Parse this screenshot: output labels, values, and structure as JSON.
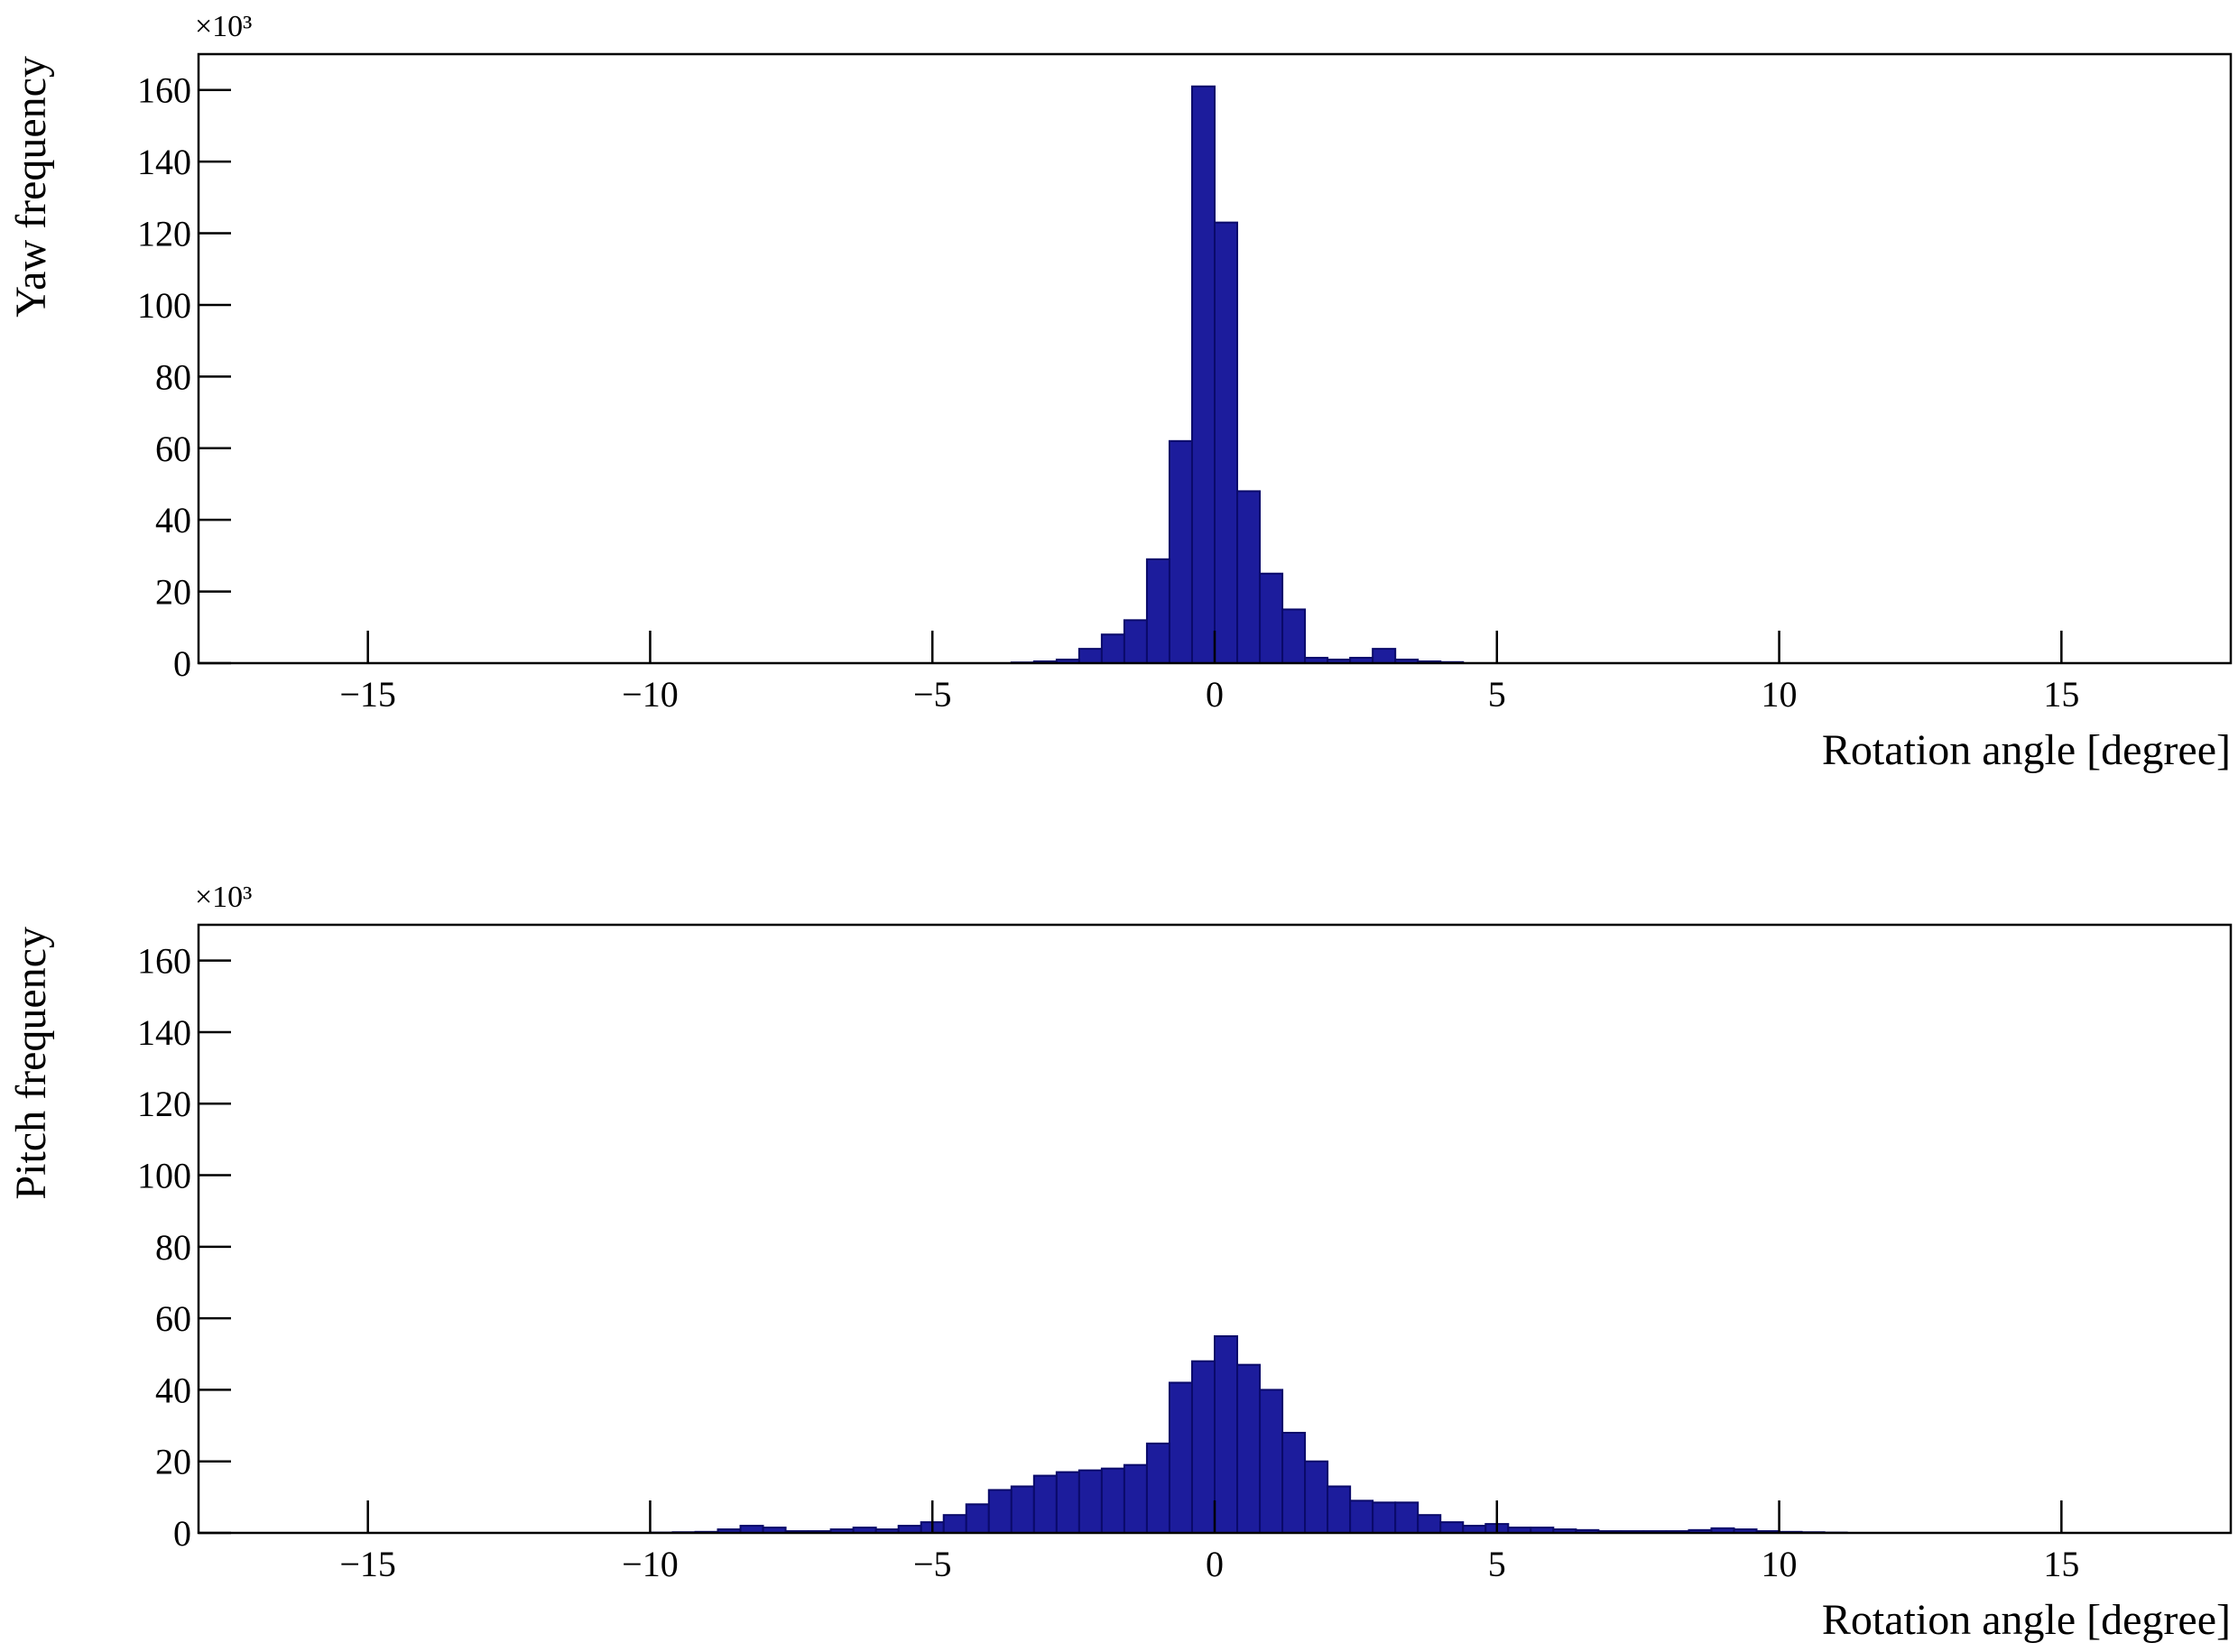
{
  "chart_data": [
    {
      "type": "histogram",
      "ylabel": "Yaw frequency",
      "xlabel": "Rotation angle [degree]",
      "y_multiplier": "×10³",
      "color": "#1c1c9c",
      "bins": [
        -18,
        -17.6,
        -17.2,
        -16.8,
        -16.4,
        -16,
        -15.6,
        -15.2,
        -14.8,
        -14.4,
        -14,
        -13.6,
        -13.2,
        -12.8,
        -12.4,
        -12,
        -11.6,
        -11.2,
        -10.8,
        -10.4,
        -10,
        -9.6,
        -9.2,
        -8.8,
        -8.4,
        -8,
        -7.6,
        -7.2,
        -6.8,
        -6.4,
        -6,
        -5.6,
        -5.2,
        -4.8,
        -4.4,
        -4,
        -3.6,
        -3.2,
        -2.8,
        -2.4,
        -2,
        -1.6,
        -1.2,
        -0.8,
        -0.4,
        0,
        0.4,
        0.8,
        1.2,
        1.6,
        2,
        2.4,
        2.8,
        3.2,
        3.6,
        4,
        4.4,
        4.8,
        5.2,
        5.6,
        6,
        6.4,
        6.8,
        7.2,
        7.6,
        8,
        8.4,
        8.8,
        9.2,
        9.6,
        10,
        10.4,
        10.8,
        11.2,
        11.6,
        12,
        12.4,
        12.8,
        13.2,
        13.6,
        14,
        14.4,
        14.8,
        15.2,
        15.6,
        16,
        16.4,
        16.8,
        17.2,
        17.6,
        18
      ],
      "values": [
        0,
        0,
        0,
        0,
        0,
        0,
        0,
        0,
        0,
        0,
        0,
        0,
        0,
        0,
        0,
        0,
        0,
        0,
        0,
        0,
        0,
        0,
        0,
        0,
        0,
        0,
        0,
        0,
        0,
        0,
        0,
        0,
        0,
        0,
        0,
        0,
        0.2,
        0.5,
        1,
        4,
        8,
        12,
        29,
        62,
        161,
        123,
        48,
        25,
        15,
        1.5,
        1,
        1.5,
        4,
        1,
        0.5,
        0.3,
        0,
        0,
        0,
        0,
        0,
        0,
        0,
        0,
        0,
        0,
        0,
        0,
        0,
        0,
        0,
        0,
        0,
        0,
        0,
        0,
        0,
        0,
        0,
        0,
        0,
        0,
        0,
        0,
        0,
        0,
        0,
        0,
        0,
        0
      ],
      "xlim": [
        -18,
        18
      ],
      "ylim": [
        0,
        170
      ],
      "xticks": [
        {
          "value": -15,
          "label": "−15"
        },
        {
          "value": -10,
          "label": "−10"
        },
        {
          "value": -5,
          "label": "−5"
        },
        0,
        5,
        10,
        15
      ],
      "yticks": [
        0,
        20,
        40,
        60,
        80,
        100,
        120,
        140,
        160
      ]
    },
    {
      "type": "histogram",
      "ylabel": "Pitch frequency",
      "xlabel": "Rotation angle [degree]",
      "y_multiplier": "×10³",
      "color": "#1c1c9c",
      "bins": [
        -18,
        -17.6,
        -17.2,
        -16.8,
        -16.4,
        -16,
        -15.6,
        -15.2,
        -14.8,
        -14.4,
        -14,
        -13.6,
        -13.2,
        -12.8,
        -12.4,
        -12,
        -11.6,
        -11.2,
        -10.8,
        -10.4,
        -10,
        -9.6,
        -9.2,
        -8.8,
        -8.4,
        -8,
        -7.6,
        -7.2,
        -6.8,
        -6.4,
        -6,
        -5.6,
        -5.2,
        -4.8,
        -4.4,
        -4,
        -3.6,
        -3.2,
        -2.8,
        -2.4,
        -2,
        -1.6,
        -1.2,
        -0.8,
        -0.4,
        0,
        0.4,
        0.8,
        1.2,
        1.6,
        2,
        2.4,
        2.8,
        3.2,
        3.6,
        4,
        4.4,
        4.8,
        5.2,
        5.6,
        6,
        6.4,
        6.8,
        7.2,
        7.6,
        8,
        8.4,
        8.8,
        9.2,
        9.6,
        10,
        10.4,
        10.8,
        11.2,
        11.6,
        12,
        12.4,
        12.8,
        13.2,
        13.6,
        14,
        14.4,
        14.8,
        15.2,
        15.6,
        16,
        16.4,
        16.8,
        17.2,
        17.6,
        18
      ],
      "values": [
        0,
        0,
        0,
        0,
        0,
        0,
        0,
        0,
        0,
        0,
        0,
        0,
        0,
        0,
        0,
        0,
        0,
        0,
        0,
        0,
        0.1,
        0.2,
        0.3,
        1,
        2,
        1.5,
        0.5,
        0.5,
        1,
        1.5,
        1,
        2,
        3,
        5,
        8,
        12,
        13,
        16,
        17,
        17.5,
        18,
        19,
        25,
        42,
        48,
        55,
        47,
        40,
        28,
        20,
        13,
        9,
        8.5,
        8.5,
        5,
        3,
        2,
        2.5,
        1.5,
        1.5,
        1,
        0.8,
        0.5,
        0.5,
        0.5,
        0.5,
        0.8,
        1.3,
        1,
        0.5,
        0.3,
        0.2,
        0.1,
        0,
        0,
        0,
        0,
        0,
        0,
        0,
        0,
        0,
        0,
        0,
        0,
        0,
        0,
        0,
        0,
        0
      ],
      "xlim": [
        -18,
        18
      ],
      "ylim": [
        0,
        170
      ],
      "xticks": [
        {
          "value": -15,
          "label": "−15"
        },
        {
          "value": -10,
          "label": "−10"
        },
        {
          "value": -5,
          "label": "−5"
        },
        0,
        5,
        10,
        15
      ],
      "yticks": [
        0,
        20,
        40,
        60,
        80,
        100,
        120,
        140,
        160
      ]
    }
  ]
}
